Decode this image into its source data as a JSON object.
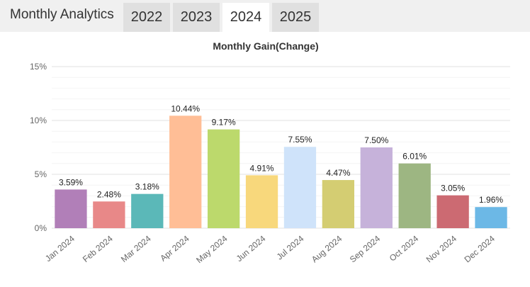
{
  "header": {
    "title": "Monthly Analytics",
    "tabs": [
      {
        "label": "2022",
        "active": false
      },
      {
        "label": "2023",
        "active": false
      },
      {
        "label": "2024",
        "active": true
      },
      {
        "label": "2025",
        "active": false
      }
    ]
  },
  "chart_data": {
    "type": "bar",
    "title": "Monthly Gain(Change)",
    "xlabel": "",
    "ylabel": "",
    "ylim": [
      0,
      15
    ],
    "yticks": [
      0,
      5,
      10,
      15
    ],
    "ytick_labels": [
      "0%",
      "5%",
      "10%",
      "15%"
    ],
    "grid": true,
    "categories": [
      "Jan 2024",
      "Feb 2024",
      "Mar 2024",
      "Apr 2024",
      "May 2024",
      "Jun 2024",
      "Jul 2024",
      "Aug 2024",
      "Sep 2024",
      "Oct 2024",
      "Nov 2024",
      "Dec 2024"
    ],
    "values": [
      3.59,
      2.48,
      3.18,
      10.44,
      9.17,
      4.91,
      7.55,
      4.47,
      7.5,
      6.01,
      3.05,
      1.96
    ],
    "data_labels": [
      "3.59%",
      "2.48%",
      "3.18%",
      "10.44%",
      "9.17%",
      "4.91%",
      "7.55%",
      "4.47%",
      "7.50%",
      "6.01%",
      "3.05%",
      "1.96%"
    ],
    "colors": [
      "#b17fb8",
      "#e88888",
      "#5bb8b8",
      "#ffbe96",
      "#bcd96c",
      "#f8d87c",
      "#cfe3fa",
      "#d4cd72",
      "#c6b2da",
      "#9db682",
      "#cc6a72",
      "#6cb8e6"
    ]
  }
}
